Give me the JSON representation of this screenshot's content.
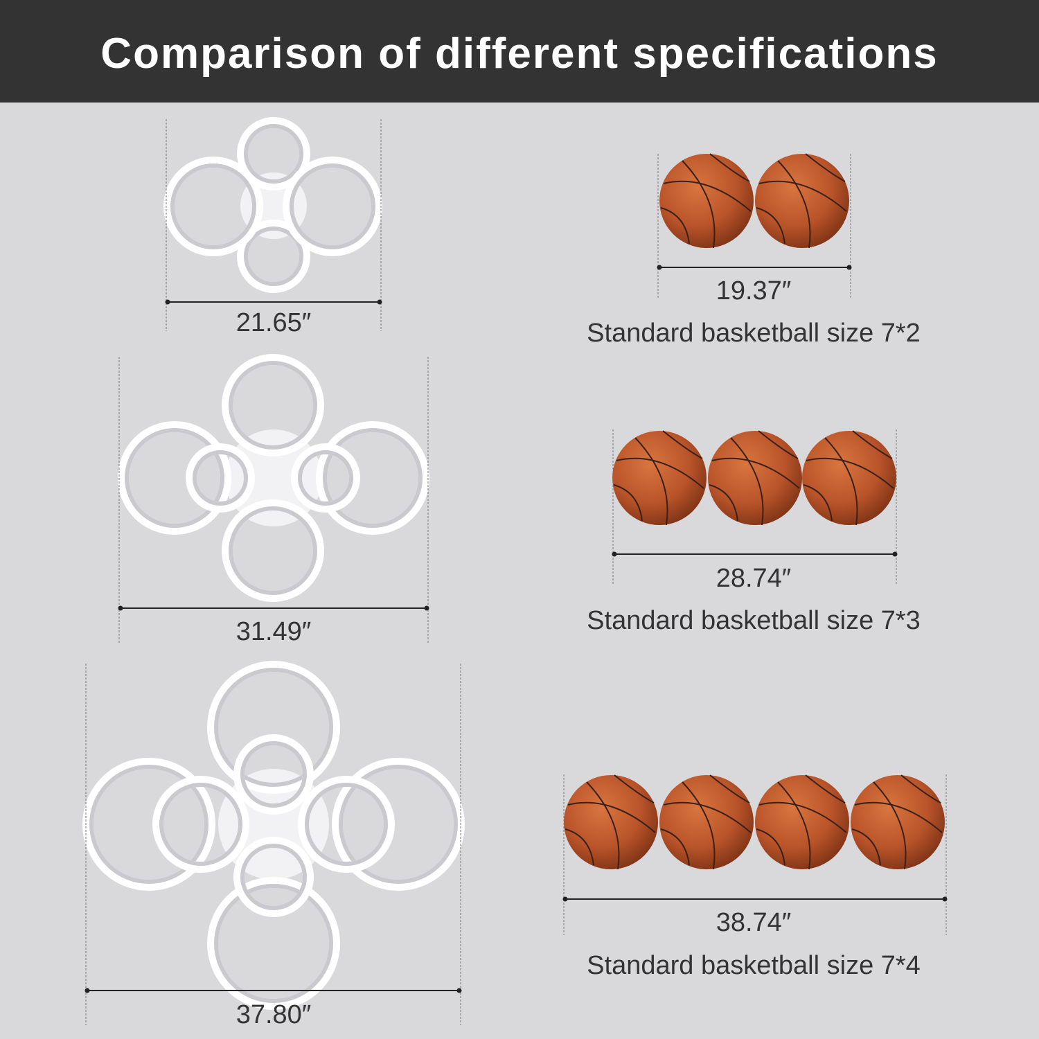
{
  "title": "Comparison of different specifications",
  "lamps": [
    {
      "width": "21.65″"
    },
    {
      "width": "31.49″"
    },
    {
      "width": "37.80″"
    }
  ],
  "basketballs": [
    {
      "width": "19.37″",
      "caption": "Standard basketball size 7*2"
    },
    {
      "width": "28.74″",
      "caption": "Standard basketball size 7*3"
    },
    {
      "width": "38.74″",
      "caption": "Standard basketball size 7*4"
    }
  ]
}
